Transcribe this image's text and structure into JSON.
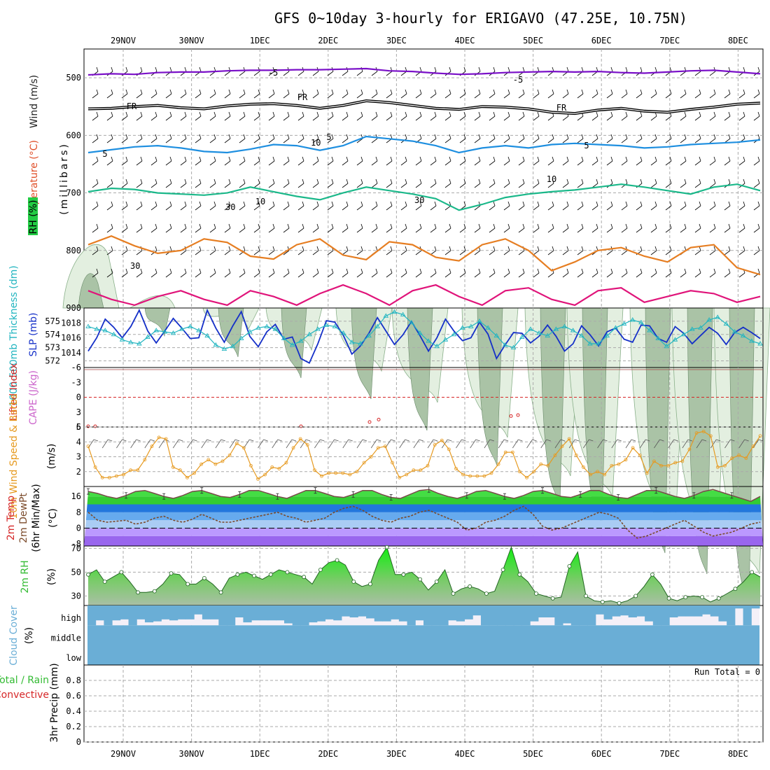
{
  "title": "GFS 0~10day 3-hourly for ERIGAVO (47.25E, 10.75N)",
  "date_labels": [
    "29NOV",
    "30NOV",
    "1DEC",
    "2DEC",
    "3DEC",
    "4DEC",
    "5DEC",
    "6DEC",
    "7DEC",
    "8DEC"
  ],
  "colors": {
    "purple": "#7a10c8",
    "black": "#000000",
    "blue_temp": "#1e8fe0",
    "green_temp": "#1bb88a",
    "orange": "#e67e22",
    "magenta": "#e0147a",
    "slp": "#1530c8",
    "thickness": "#22b5c0",
    "wind10m": "#e69a20",
    "rh2m": "#33bb33",
    "cloud": "#6aaed6",
    "cape": "#d62728"
  },
  "chart_data": [
    {
      "type": "line",
      "panel": "upper-air",
      "ylabel_parts": [
        "Wind (m/s)",
        "Temperature (°C)",
        "RH (%)"
      ],
      "ylabel_units": "(millibars)",
      "yticks": [
        "500",
        "600",
        "700",
        "800",
        "900"
      ],
      "ylim": [
        900,
        450
      ],
      "isotherm_labels": [
        "-5",
        "FR",
        "5",
        "10"
      ],
      "rh_contour_labels": [
        "10",
        "30"
      ],
      "series": [
        {
          "name": "-5",
          "color": "purple",
          "x_start": 0,
          "x_step": 3,
          "values": [
            495,
            493,
            494,
            491,
            490,
            490,
            488,
            487,
            487,
            486,
            486,
            485,
            484,
            488,
            489,
            492,
            494,
            493,
            491,
            490,
            489,
            490,
            489,
            491,
            492,
            490,
            488,
            487,
            490,
            493
          ]
        },
        {
          "name": "FR",
          "color": "black",
          "x_start": 0,
          "x_step": 3,
          "values": [
            554,
            553,
            550,
            548,
            552,
            554,
            549,
            546,
            545,
            548,
            553,
            548,
            540,
            543,
            548,
            553,
            555,
            550,
            551,
            554,
            560,
            562,
            556,
            553,
            558,
            560,
            555,
            551,
            546,
            544
          ]
        },
        {
          "name": "5",
          "color": "blue_temp",
          "x_start": 0,
          "x_step": 3,
          "values": [
            630,
            625,
            620,
            618,
            622,
            628,
            630,
            624,
            616,
            618,
            626,
            618,
            602,
            606,
            610,
            618,
            630,
            622,
            618,
            622,
            616,
            614,
            616,
            618,
            622,
            620,
            616,
            614,
            612,
            608
          ]
        },
        {
          "name": "10",
          "color": "green_temp",
          "x_start": 0,
          "x_step": 3,
          "values": [
            698,
            692,
            694,
            700,
            702,
            704,
            700,
            690,
            698,
            706,
            712,
            700,
            690,
            696,
            702,
            710,
            730,
            720,
            708,
            702,
            698,
            695,
            690,
            685,
            690,
            696,
            702,
            690,
            685,
            696
          ]
        },
        {
          "name": "",
          "color": "orange",
          "x_start": 0,
          "x_step": 3,
          "values": [
            790,
            775,
            792,
            805,
            800,
            780,
            786,
            810,
            815,
            790,
            780,
            808,
            816,
            785,
            790,
            812,
            818,
            790,
            780,
            800,
            835,
            820,
            800,
            795,
            810,
            820,
            795,
            790,
            830,
            842
          ]
        },
        {
          "name": "",
          "color": "magenta",
          "x_start": 0,
          "x_step": 3,
          "values": [
            870,
            885,
            895,
            880,
            870,
            885,
            895,
            870,
            880,
            895,
            875,
            860,
            875,
            895,
            870,
            860,
            880,
            895,
            870,
            865,
            885,
            895,
            870,
            865,
            890,
            880,
            870,
            875,
            890,
            880
          ]
        }
      ]
    },
    {
      "type": "line",
      "panel": "slp-thickness",
      "ylabel": "1000-500mb Thickness (dm)",
      "ylabel2": "SLP (mb)",
      "yticks_left": [
        "575",
        "574",
        "573",
        "572"
      ],
      "yticks_right": [
        "1018",
        "1016",
        "1014"
      ],
      "ylim_left": [
        571.5,
        576
      ],
      "ylim_right": [
        1012,
        1020
      ],
      "x": [
        0,
        3,
        6,
        9,
        12,
        15,
        18,
        21,
        24,
        27,
        30,
        33,
        36,
        39,
        42,
        45,
        48,
        51,
        54,
        57,
        60,
        63,
        66,
        69,
        72,
        75,
        78,
        81,
        84,
        87,
        90,
        93,
        96,
        99,
        102,
        105,
        108,
        111,
        114,
        117,
        120,
        123,
        126,
        129,
        132,
        135,
        138,
        141,
        144,
        147,
        150,
        153,
        156,
        159,
        162,
        165,
        168,
        171,
        174,
        177,
        180,
        183,
        186,
        189,
        192,
        195,
        198,
        201,
        204,
        207,
        210,
        213,
        216,
        219,
        222,
        225,
        228,
        231,
        234,
        237
      ],
      "series": [
        {
          "name": "SLP (mb)",
          "color": "slp",
          "values": [
            1014.2,
            1016,
            1018.5,
            1017.4,
            1016,
            1017.5,
            1019.7,
            1016.9,
            1015.3,
            1016.9,
            1018.6,
            1017.3,
            1015.9,
            1016,
            1019.7,
            1017.3,
            1015.4,
            1017.6,
            1019.5,
            1016.2,
            1014.8,
            1016.8,
            1017.8,
            1015.8,
            1016.1,
            1013.2,
            1012.6,
            1015.2,
            1018.3,
            1018.1,
            1016.3,
            1013.8,
            1014.9,
            1016.6,
            1018.7,
            1016.9,
            1015.1,
            1016.4,
            1018.2,
            1016.3,
            1014.2,
            1016,
            1018.5,
            1016.9,
            1015.6,
            1016,
            1018.1,
            1016.5,
            1013.2,
            1015,
            1016.7,
            1016.6,
            1015.3,
            1016.2,
            1017.7,
            1016.2,
            1014.2,
            1015.2,
            1017.6,
            1016.4,
            1014.9,
            1016.8,
            1017.3,
            1015.8,
            1015.4,
            1017.7,
            1017.6,
            1015.9,
            1015.4,
            1017.5,
            1016.6,
            1015.2,
            1016.3,
            1017.4,
            1016.6,
            1015.1,
            1016.7,
            1017.4,
            1016.7,
            1015.9
          ]
        },
        {
          "name": "Thickness (dm)",
          "color": "thickness",
          "values": [
            574.6,
            574.4,
            574.3,
            574,
            573.6,
            573.4,
            573.3,
            573.8,
            574.3,
            574.2,
            574.1,
            574.4,
            574.6,
            574.3,
            573.9,
            573.2,
            572.9,
            573.1,
            573.7,
            574.2,
            574.5,
            574.6,
            574.4,
            573.7,
            573.2,
            573.5,
            574,
            574.4,
            574.7,
            574.6,
            574.1,
            573.4,
            573.3,
            573.9,
            574.6,
            575.4,
            575.7,
            575.5,
            574.9,
            574.1,
            573.5,
            573.1,
            573.6,
            574,
            574.5,
            574.6,
            575,
            574.5,
            573.9,
            573.2,
            573,
            573.8,
            574.4,
            574.1,
            573.9,
            574.4,
            574.6,
            574.3,
            573.9,
            573.3,
            573.3,
            573.9,
            574.5,
            574.8,
            575.1,
            574.9,
            574.3,
            573.7,
            573.1,
            573.6,
            574,
            574.4,
            574.5,
            575.1,
            575.3,
            574.8,
            574.2,
            573.9,
            573.5,
            573.3
          ]
        }
      ]
    },
    {
      "type": "line",
      "panel": "cape-li",
      "ylabel": "Lifted Index",
      "ylabel2": "CAPE (J/kg)",
      "yticks": [
        "-6",
        "-3",
        "0",
        "3",
        "6"
      ],
      "ylim": [
        6,
        -6
      ]
    },
    {
      "type": "line",
      "panel": "wind10m",
      "ylabel": "10m Wind Speed & Barbs",
      "units": "(m/s)",
      "yticks": [
        "5",
        "4",
        "3",
        "2"
      ],
      "ylim": [
        1,
        5
      ],
      "series": [
        {
          "name": "10m Wind",
          "color": "wind10m",
          "values": [
            3.7,
            2.3,
            1.6,
            1.6,
            1.7,
            1.8,
            2.1,
            2.1,
            2.8,
            3.7,
            4.3,
            4.2,
            2.3,
            2.1,
            1.6,
            1.9,
            2.5,
            2.8,
            2.5,
            2.7,
            3.1,
            3.9,
            3.6,
            2.4,
            1.5,
            1.8,
            2.3,
            2.2,
            2.6,
            3.6,
            4.2,
            3.8,
            2.1,
            1.7,
            1.9,
            1.9,
            1.9,
            1.8,
            2,
            2.6,
            3,
            3.6,
            3.7,
            2.6,
            1.6,
            1.8,
            2.1,
            2.1,
            2.4,
            3.8,
            4.1,
            3.5,
            2.2,
            1.8,
            1.7,
            1.7,
            1.7,
            1.9,
            2.5,
            3.3,
            3.3,
            2,
            1.6,
            2,
            2.5,
            2.4,
            3.1,
            3.7,
            4.2,
            3.1,
            2.3,
            1.8,
            2,
            1.8,
            2.4,
            2.5,
            2.8,
            3.6,
            3.1,
            1.9,
            2.7,
            2.4,
            2.4,
            2.6,
            2.7,
            3.5,
            4.6,
            4.7,
            4.4,
            2.3,
            2.4,
            2.9,
            3.1,
            2.9,
            3.7,
            4.4
          ]
        }
      ]
    },
    {
      "type": "area",
      "panel": "temp2m",
      "ylabel_parts": [
        "2m Temp",
        "2m DewPt",
        "(6hr Min/Max)"
      ],
      "units": "(°C)",
      "yticks": [
        "16",
        "8",
        "0",
        "-8"
      ],
      "ylim": [
        -9,
        21
      ],
      "series": [
        {
          "name": "2m Temp",
          "color": "#5a9a50",
          "values": [
            18.5,
            17.5,
            16,
            15,
            16.5,
            18.5,
            19,
            17.5,
            16,
            15,
            16.5,
            18.5,
            19,
            17.5,
            16,
            15.5,
            17,
            19,
            19,
            17.5,
            16,
            15,
            17,
            19,
            19,
            17.5,
            16,
            15.5,
            17,
            19,
            19,
            17,
            15.5,
            15,
            17,
            19,
            19.5,
            17.5,
            16,
            15,
            16.5,
            18.5,
            19,
            17.5,
            16,
            15,
            16.5,
            18.5,
            19,
            17.5,
            16,
            15.5,
            17,
            19,
            19,
            17,
            15.5,
            15,
            17,
            19,
            19,
            17.5,
            16,
            15,
            16.5,
            18.5,
            19.5,
            18,
            16.5,
            15,
            13.5,
            16
          ]
        },
        {
          "name": "2m DewPt",
          "color": "#7b4a2a",
          "values": [
            8,
            4,
            3,
            3.5,
            4,
            2,
            3,
            5,
            6,
            4,
            3,
            4.5,
            7,
            5,
            3,
            3,
            4,
            5,
            6,
            7,
            8,
            6,
            5,
            3,
            4,
            5,
            8,
            10,
            11,
            9,
            6,
            4,
            3,
            5,
            6,
            8,
            9,
            7,
            5,
            3,
            -1,
            0,
            3,
            4,
            6,
            9,
            11,
            7,
            1,
            -1,
            0,
            2,
            4,
            6,
            8,
            7,
            5,
            -1,
            -5,
            -4,
            -2,
            0,
            2,
            4,
            1,
            -2,
            -4,
            -3,
            -2,
            0,
            2,
            3
          ]
        }
      ]
    },
    {
      "type": "area",
      "panel": "rh2m",
      "ylabel": "2m RH",
      "units": "(%)",
      "yticks": [
        "70",
        "50",
        "30"
      ],
      "ylim": [
        22,
        72
      ],
      "series": [
        {
          "name": "2m RH",
          "color": "rh2m",
          "values": [
            48,
            52,
            42,
            46,
            50,
            42,
            33,
            33,
            34,
            40,
            49,
            48,
            40,
            40,
            45,
            40,
            33,
            45,
            48,
            50,
            47,
            44,
            48,
            52,
            50,
            48,
            46,
            40,
            52,
            58,
            60,
            56,
            42,
            38,
            40,
            60,
            71,
            48,
            48,
            50,
            44,
            35,
            42,
            52,
            32,
            36,
            38,
            36,
            32,
            34,
            52,
            71,
            48,
            42,
            32,
            30,
            28,
            29,
            55,
            67,
            30,
            26,
            25,
            26,
            24,
            26,
            30,
            38,
            48,
            40,
            28,
            26,
            29,
            30,
            29,
            25,
            28,
            32,
            36,
            42,
            50,
            46
          ]
        }
      ]
    },
    {
      "type": "bar",
      "panel": "cloud-cover",
      "ylabel": "Cloud Cover",
      "units": "(%)",
      "layer_labels": [
        "high",
        "middle",
        "low"
      ],
      "series": [
        {
          "name": "high",
          "color": "cloud",
          "values": [
            100,
            75,
            100,
            75,
            70,
            100,
            70,
            85,
            80,
            70,
            75,
            70,
            70,
            45,
            70,
            70,
            100,
            100,
            60,
            85,
            75,
            75,
            75,
            75,
            90,
            100,
            100,
            85,
            80,
            70,
            75,
            55,
            60,
            55,
            65,
            80,
            80,
            70,
            80,
            100,
            75,
            100,
            100,
            100,
            75,
            80,
            70,
            50,
            100,
            100,
            100,
            100,
            100,
            100,
            80,
            60,
            60,
            100,
            90,
            100,
            100,
            100,
            45,
            70,
            55,
            50,
            60,
            55,
            80,
            100,
            100,
            60,
            55,
            55,
            55,
            45,
            55,
            80,
            100,
            15,
            100,
            15
          ]
        },
        {
          "name": "middle",
          "color": "cloud",
          "values": [
            100
          ]
        },
        {
          "name": "low",
          "color": "cloud",
          "values": [
            100
          ]
        }
      ]
    },
    {
      "type": "bar",
      "panel": "precip",
      "ylabel_parts": [
        "Total / Rain",
        "Convective",
        "3hr Precip (mm)"
      ],
      "yticks": [
        "0.8",
        "0.6",
        "0.4",
        "0.2",
        "0"
      ],
      "ylim": [
        0,
        1
      ],
      "run_total": "Run Total = 0",
      "values": []
    }
  ]
}
